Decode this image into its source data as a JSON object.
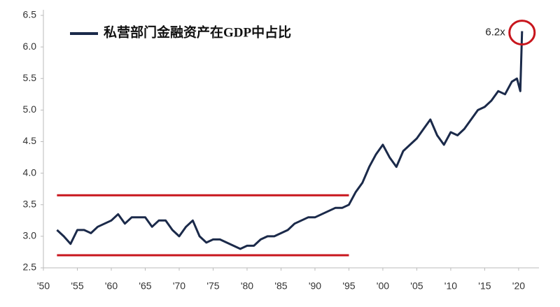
{
  "chart_data": {
    "type": "line",
    "series": [
      {
        "name": "私营部门金融资产在GDP中占比",
        "color": "#1b2a4a",
        "x": [
          1952,
          1953,
          1954,
          1955,
          1956,
          1957,
          1958,
          1959,
          1960,
          1961,
          1962,
          1963,
          1964,
          1965,
          1966,
          1967,
          1968,
          1969,
          1970,
          1971,
          1972,
          1973,
          1974,
          1975,
          1976,
          1977,
          1978,
          1979,
          1980,
          1981,
          1982,
          1983,
          1984,
          1985,
          1986,
          1987,
          1988,
          1989,
          1990,
          1991,
          1992,
          1993,
          1994,
          1995,
          1996,
          1997,
          1998,
          1999,
          2000,
          2001,
          2002,
          2003,
          2004,
          2005,
          2006,
          2007,
          2008,
          2009,
          2010,
          2011,
          2012,
          2013,
          2014,
          2015,
          2016,
          2017,
          2018,
          2019,
          2019.75,
          2020.25,
          2020.5
        ],
        "values": [
          3.1,
          3.0,
          2.88,
          3.1,
          3.1,
          3.05,
          3.15,
          3.2,
          3.25,
          3.35,
          3.2,
          3.3,
          3.3,
          3.3,
          3.15,
          3.25,
          3.25,
          3.1,
          3.0,
          3.15,
          3.25,
          3.0,
          2.9,
          2.95,
          2.95,
          2.9,
          2.85,
          2.8,
          2.85,
          2.85,
          2.95,
          3.0,
          3.0,
          3.05,
          3.1,
          3.2,
          3.25,
          3.3,
          3.3,
          3.35,
          3.4,
          3.45,
          3.45,
          3.5,
          3.7,
          3.85,
          4.1,
          4.3,
          4.45,
          4.25,
          4.1,
          4.35,
          4.45,
          4.55,
          4.7,
          4.85,
          4.6,
          4.45,
          4.65,
          4.6,
          4.7,
          4.85,
          5.0,
          5.05,
          5.15,
          5.3,
          5.25,
          5.45,
          5.5,
          5.3,
          6.25
        ]
      }
    ],
    "xlim": [
      1950,
      2023
    ],
    "xticks": [
      {
        "value": 1950,
        "label": "'50"
      },
      {
        "value": 1955,
        "label": "'55"
      },
      {
        "value": 1960,
        "label": "'60"
      },
      {
        "value": 1965,
        "label": "'65"
      },
      {
        "value": 1970,
        "label": "'70"
      },
      {
        "value": 1975,
        "label": "'75"
      },
      {
        "value": 1980,
        "label": "'80"
      },
      {
        "value": 1985,
        "label": "'85"
      },
      {
        "value": 1990,
        "label": "'90"
      },
      {
        "value": 1995,
        "label": "'95"
      },
      {
        "value": 2000,
        "label": "'00"
      },
      {
        "value": 2005,
        "label": "'05"
      },
      {
        "value": 2010,
        "label": "'10"
      },
      {
        "value": 2015,
        "label": "'15"
      },
      {
        "value": 2020,
        "label": "'20"
      }
    ],
    "ylim": [
      2.5,
      6.5
    ],
    "yticks": [
      2.5,
      {
        "value": 3,
        "label": "3.0"
      },
      3.5,
      {
        "value": 4,
        "label": "4.0"
      },
      4.5,
      {
        "value": 5,
        "label": "5.0"
      },
      5.5,
      {
        "value": 6,
        "label": "6.0"
      },
      6.5
    ],
    "reference_lines": [
      {
        "value": 3.65,
        "from": 1952,
        "to": 1995,
        "color": "#c8161d"
      },
      {
        "value": 2.7,
        "from": 1952,
        "to": 1995,
        "color": "#c8161d"
      }
    ],
    "annotation": {
      "text": "6.2x",
      "color": "#c8161d"
    },
    "grid": false
  }
}
